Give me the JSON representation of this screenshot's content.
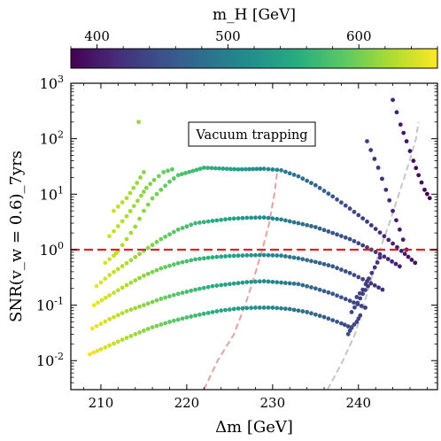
{
  "chart_data": {
    "type": "scatter",
    "x_scale": "linear",
    "y_scale": "log",
    "xlabel": "Δm [GeV]",
    "ylabel": "SNR(v_w = 0.6)_7yrs",
    "xlim": [
      206.5,
      249.2
    ],
    "ylim": [
      0.003,
      1000
    ],
    "xticks": [
      210,
      220,
      230,
      240
    ],
    "xtick_labels": [
      "210",
      "220",
      "230",
      "240"
    ],
    "yticks": [
      0.01,
      0.1,
      1,
      10,
      100,
      1000
    ],
    "ytick_labels": [
      "10^-2",
      "10^-1",
      "10^0",
      "10^1",
      "10^2",
      "10^3"
    ],
    "grid": false,
    "threshold_line": {
      "y": 1,
      "color": "#e41a1c",
      "style": "dashed"
    },
    "annotation": "Vacuum trapping",
    "colorbar": {
      "label": "m_H [GeV]",
      "position": "top",
      "range": [
        380,
        660
      ],
      "ticks": [
        400,
        500,
        600
      ],
      "tick_labels": [
        "400",
        "500",
        "600"
      ],
      "colormap": "viridis"
    },
    "series": [
      {
        "points": [
          [
            210.5,
            0.58
          ],
          [
            211.5,
            0.78
          ],
          [
            212,
            0.95
          ],
          [
            213,
            1.55
          ],
          [
            214,
            2.6
          ],
          [
            215,
            5.0
          ],
          [
            216,
            8.4
          ],
          [
            217,
            12.0
          ],
          [
            218,
            16.8
          ],
          [
            219,
            22.0
          ],
          [
            222,
            30.0
          ],
          [
            226,
            28.0
          ],
          [
            229,
            28.7
          ],
          [
            231,
            27.0
          ],
          [
            233,
            21.0
          ],
          [
            235,
            14.5
          ],
          [
            237,
            9.1
          ],
          [
            239,
            5.5
          ],
          [
            241,
            3.2
          ],
          [
            243,
            1.75
          ],
          [
            245,
            0.95
          ],
          [
            246.6,
            0.58
          ]
        ]
      },
      {
        "points": [
          [
            209.5,
            0.22
          ],
          [
            211,
            0.35
          ],
          [
            213,
            0.57
          ],
          [
            215,
            0.95
          ],
          [
            217,
            1.55
          ],
          [
            219,
            2.3
          ],
          [
            221,
            3.0
          ],
          [
            223,
            3.3
          ],
          [
            225,
            3.6
          ],
          [
            227,
            3.75
          ],
          [
            229,
            3.8
          ],
          [
            231,
            3.5
          ],
          [
            233,
            3.0
          ],
          [
            235,
            2.55
          ],
          [
            237,
            2.0
          ],
          [
            239,
            1.55
          ],
          [
            241,
            1.1
          ],
          [
            243,
            0.75
          ],
          [
            244.8,
            0.5
          ]
        ]
      },
      {
        "points": [
          [
            209.2,
            0.1
          ],
          [
            211,
            0.15
          ],
          [
            213,
            0.23
          ],
          [
            215,
            0.34
          ],
          [
            217,
            0.46
          ],
          [
            219,
            0.57
          ],
          [
            221,
            0.67
          ],
          [
            223,
            0.73
          ],
          [
            225,
            0.77
          ],
          [
            227,
            0.79
          ],
          [
            229,
            0.8
          ],
          [
            231,
            0.78
          ],
          [
            233,
            0.7
          ],
          [
            235,
            0.6
          ],
          [
            237,
            0.5
          ],
          [
            239,
            0.38
          ],
          [
            241,
            0.27
          ],
          [
            242.8,
            0.19
          ]
        ]
      },
      {
        "points": [
          [
            209,
            0.038
          ],
          [
            211,
            0.056
          ],
          [
            213,
            0.078
          ],
          [
            215,
            0.1
          ],
          [
            217,
            0.13
          ],
          [
            219,
            0.16
          ],
          [
            221,
            0.19
          ],
          [
            223,
            0.22
          ],
          [
            225,
            0.24
          ],
          [
            227,
            0.26
          ],
          [
            229,
            0.27
          ],
          [
            231,
            0.255
          ],
          [
            233,
            0.24
          ],
          [
            235,
            0.2
          ],
          [
            237,
            0.16
          ],
          [
            239,
            0.12
          ],
          [
            240.8,
            0.09
          ]
        ]
      },
      {
        "points": [
          [
            208.7,
            0.013
          ],
          [
            210,
            0.016
          ],
          [
            212,
            0.022
          ],
          [
            214,
            0.03
          ],
          [
            216,
            0.04
          ],
          [
            218,
            0.05
          ],
          [
            220,
            0.06
          ],
          [
            222,
            0.07
          ],
          [
            224,
            0.08
          ],
          [
            226,
            0.087
          ],
          [
            228,
            0.09
          ],
          [
            230,
            0.09
          ],
          [
            232,
            0.085
          ],
          [
            234,
            0.075
          ],
          [
            236,
            0.061
          ],
          [
            238,
            0.047
          ],
          [
            239.2,
            0.039
          ]
        ]
      },
      {
        "points": [
          [
            211,
            1.75
          ],
          [
            213,
            4.0
          ],
          [
            214.7,
            9.4
          ],
          [
            215.3,
            13.0
          ],
          [
            216.2,
            18.0
          ],
          [
            217.3,
            25.0
          ],
          [
            218.3,
            28.0
          ]
        ]
      },
      {
        "points": [
          [
            211.5,
            5.0
          ],
          [
            213,
            8.5
          ],
          [
            214.2,
            16.0
          ],
          [
            215,
            25.0
          ]
        ]
      },
      {
        "points": [
          [
            214.4,
            200
          ]
        ]
      },
      {
        "points": [
          [
            241,
            90
          ],
          [
            242.3,
            30
          ],
          [
            243.2,
            12
          ],
          [
            244,
            5.0
          ],
          [
            244.8,
            2.3
          ],
          [
            245.6,
            1.0
          ]
        ]
      },
      {
        "points": [
          [
            244,
            500
          ],
          [
            244.9,
            180
          ],
          [
            245.6,
            90
          ],
          [
            246.4,
            40
          ],
          [
            247,
            22
          ],
          [
            247.7,
            12
          ],
          [
            248.3,
            8.5
          ]
        ]
      },
      {
        "points": [
          [
            239.8,
            0.14
          ],
          [
            240.5,
            0.19
          ],
          [
            241.2,
            0.3
          ],
          [
            241.9,
            0.48
          ],
          [
            242.5,
            0.72
          ]
        ]
      },
      {
        "points": [
          [
            239.2,
            0.075
          ],
          [
            239.9,
            0.11
          ],
          [
            240.5,
            0.16
          ],
          [
            241.1,
            0.22
          ]
        ]
      },
      {
        "points": [
          [
            238.8,
            0.03
          ],
          [
            239.2,
            0.04
          ],
          [
            239.8,
            0.05
          ],
          [
            240.2,
            0.065
          ]
        ]
      }
    ],
    "guide_curves": [
      {
        "color": "#e2a3a3",
        "points": [
          [
            222,
            0.003
          ],
          [
            223.6,
            0.01
          ],
          [
            225.5,
            0.03
          ],
          [
            226.8,
            0.1
          ],
          [
            227.8,
            0.3
          ],
          [
            228.8,
            1
          ],
          [
            229.6,
            3
          ],
          [
            230.2,
            10
          ],
          [
            230.6,
            30
          ]
        ]
      },
      {
        "color": "#c6c6c6",
        "points": [
          [
            236.4,
            0.003
          ],
          [
            238.2,
            0.01
          ],
          [
            239.6,
            0.03
          ],
          [
            240.6,
            0.1
          ],
          [
            241.5,
            0.3
          ],
          [
            242.5,
            1
          ],
          [
            243.6,
            3
          ],
          [
            244.7,
            10
          ],
          [
            245.7,
            30
          ],
          [
            246.7,
            100
          ],
          [
            247,
            200
          ]
        ]
      }
    ]
  }
}
